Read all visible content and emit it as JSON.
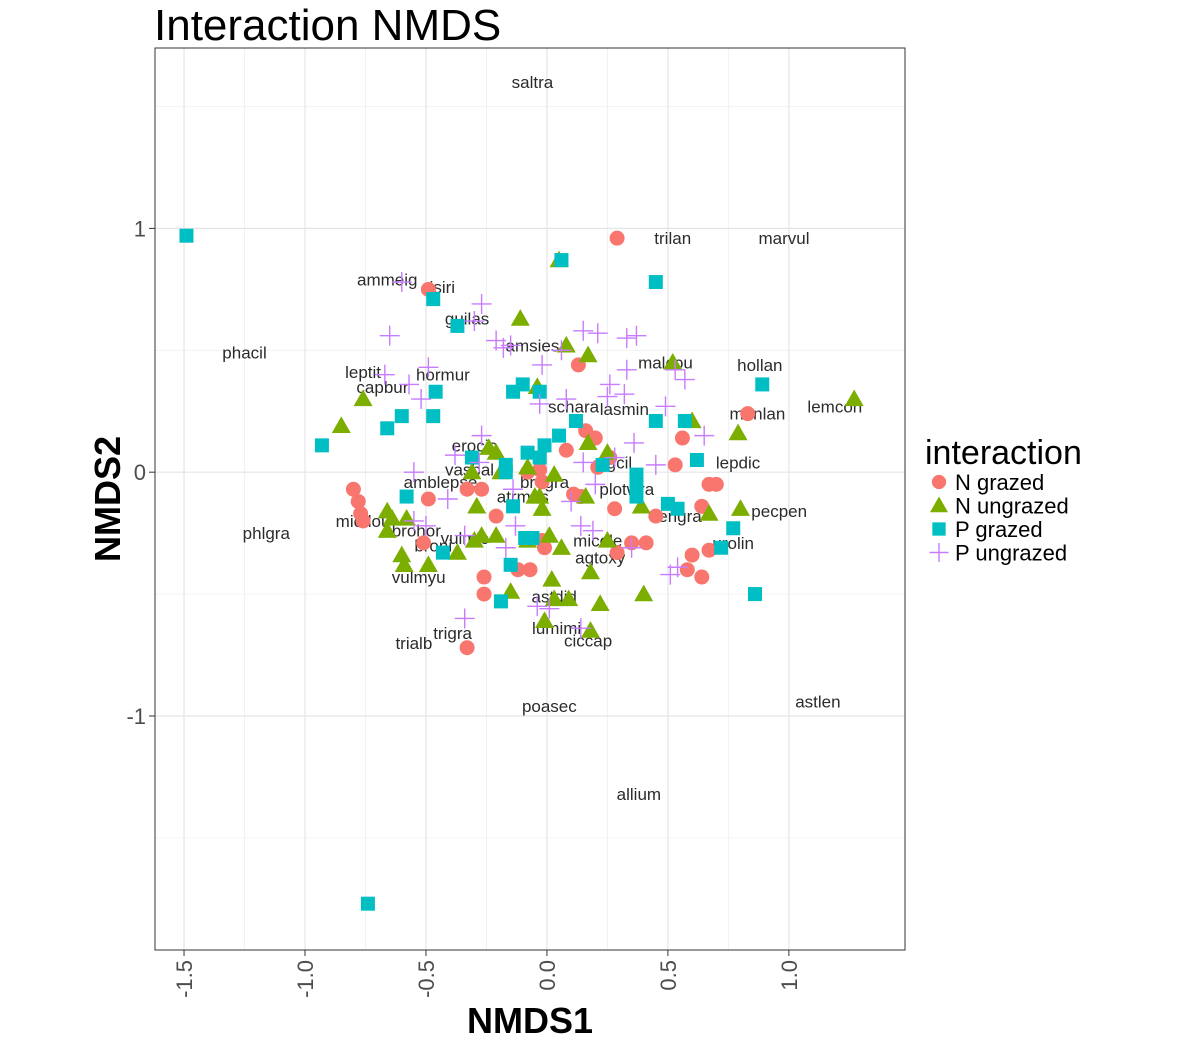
{
  "chart_data": {
    "type": "scatter",
    "title": "Interaction NMDS",
    "xlabel": "NMDS1",
    "ylabel": "NMDS2",
    "xlim": [
      -1.62,
      1.48
    ],
    "ylim": [
      -1.96,
      1.74
    ],
    "x_ticks": [
      -1.5,
      -1.0,
      -0.5,
      0.0,
      0.5,
      1.0
    ],
    "x_tick_labels": [
      "-1.5",
      "-1.0",
      "-0.5",
      "0.0",
      "0.5",
      "1.0"
    ],
    "y_ticks": [
      -1,
      0,
      1
    ],
    "y_tick_labels": [
      "-1",
      "0",
      "1"
    ],
    "grid": true,
    "legend": {
      "title": "interaction",
      "position": "right"
    },
    "series": [
      {
        "name": "N grazed",
        "shape": "circle",
        "color": "#F8766D",
        "points": [
          [
            0.29,
            0.96
          ],
          [
            -0.49,
            0.75
          ],
          [
            0.13,
            0.44
          ],
          [
            0.83,
            0.24
          ],
          [
            0.16,
            0.17
          ],
          [
            0.2,
            0.14
          ],
          [
            0.56,
            0.14
          ],
          [
            0.08,
            0.09
          ],
          [
            0.26,
            0.06
          ],
          [
            0.53,
            0.03
          ],
          [
            -0.03,
            0.01
          ],
          [
            0.21,
            0.02
          ],
          [
            -0.08,
            0.0
          ],
          [
            -0.27,
            -0.07
          ],
          [
            -0.33,
            -0.07
          ],
          [
            -0.02,
            -0.04
          ],
          [
            -0.8,
            -0.07
          ],
          [
            -0.78,
            -0.12
          ],
          [
            -0.77,
            -0.17
          ],
          [
            -0.76,
            -0.2
          ],
          [
            -0.49,
            -0.11
          ],
          [
            0.11,
            -0.09
          ],
          [
            0.14,
            -0.1
          ],
          [
            0.28,
            -0.15
          ],
          [
            0.45,
            -0.18
          ],
          [
            0.67,
            -0.05
          ],
          [
            0.7,
            -0.05
          ],
          [
            0.64,
            -0.14
          ],
          [
            -0.21,
            -0.18
          ],
          [
            -0.51,
            -0.29
          ],
          [
            -0.02,
            -0.28
          ],
          [
            -0.01,
            -0.31
          ],
          [
            0.35,
            -0.29
          ],
          [
            0.41,
            -0.29
          ],
          [
            0.29,
            -0.33
          ],
          [
            0.6,
            -0.34
          ],
          [
            0.67,
            -0.32
          ],
          [
            -0.12,
            -0.4
          ],
          [
            -0.07,
            -0.4
          ],
          [
            0.58,
            -0.4
          ],
          [
            0.64,
            -0.43
          ],
          [
            -0.26,
            -0.43
          ],
          [
            -0.26,
            -0.5
          ],
          [
            -0.33,
            -0.72
          ]
        ]
      },
      {
        "name": "N ungrazed",
        "shape": "triangle",
        "color": "#7CAE00",
        "points": [
          [
            0.05,
            0.87
          ],
          [
            -0.11,
            0.63
          ],
          [
            0.08,
            0.52
          ],
          [
            0.17,
            0.48
          ],
          [
            0.52,
            0.45
          ],
          [
            -0.04,
            0.35
          ],
          [
            -0.76,
            0.3
          ],
          [
            -0.85,
            0.19
          ],
          [
            0.6,
            0.21
          ],
          [
            0.79,
            0.16
          ],
          [
            1.27,
            0.3
          ],
          [
            0.17,
            0.12
          ],
          [
            -0.24,
            0.1
          ],
          [
            -0.21,
            0.08
          ],
          [
            0.25,
            0.08
          ],
          [
            -0.31,
            0.0
          ],
          [
            -0.19,
            0.0
          ],
          [
            -0.08,
            0.02
          ],
          [
            0.03,
            -0.01
          ],
          [
            -0.05,
            -0.1
          ],
          [
            -0.03,
            -0.1
          ],
          [
            0.16,
            -0.1
          ],
          [
            -0.02,
            -0.15
          ],
          [
            -0.29,
            -0.14
          ],
          [
            0.39,
            -0.14
          ],
          [
            -0.66,
            -0.16
          ],
          [
            -0.58,
            -0.19
          ],
          [
            -0.64,
            -0.19
          ],
          [
            -0.66,
            -0.24
          ],
          [
            0.67,
            -0.17
          ],
          [
            0.8,
            -0.15
          ],
          [
            -0.27,
            -0.26
          ],
          [
            -0.21,
            -0.26
          ],
          [
            0.01,
            -0.26
          ],
          [
            -0.08,
            -0.28
          ],
          [
            0.25,
            -0.28
          ],
          [
            -0.3,
            -0.28
          ],
          [
            0.06,
            -0.31
          ],
          [
            -0.6,
            -0.34
          ],
          [
            -0.59,
            -0.38
          ],
          [
            -0.49,
            -0.38
          ],
          [
            -0.37,
            -0.33
          ],
          [
            0.18,
            -0.41
          ],
          [
            0.02,
            -0.44
          ],
          [
            -0.15,
            -0.49
          ],
          [
            0.4,
            -0.5
          ],
          [
            0.03,
            -0.52
          ],
          [
            0.09,
            -0.52
          ],
          [
            0.22,
            -0.54
          ],
          [
            -0.01,
            -0.61
          ],
          [
            0.18,
            -0.65
          ]
        ]
      },
      {
        "name": "P grazed",
        "shape": "square",
        "color": "#00BFC4",
        "points": [
          [
            -1.49,
            0.97
          ],
          [
            0.06,
            0.87
          ],
          [
            0.45,
            0.78
          ],
          [
            -0.47,
            0.71
          ],
          [
            -0.37,
            0.6
          ],
          [
            -0.1,
            0.36
          ],
          [
            -0.14,
            0.33
          ],
          [
            -0.03,
            0.33
          ],
          [
            -0.46,
            0.33
          ],
          [
            -0.6,
            0.23
          ],
          [
            -0.47,
            0.23
          ],
          [
            -0.66,
            0.18
          ],
          [
            0.12,
            0.21
          ],
          [
            0.45,
            0.21
          ],
          [
            0.57,
            0.21
          ],
          [
            0.89,
            0.36
          ],
          [
            -0.93,
            0.11
          ],
          [
            -0.01,
            0.11
          ],
          [
            0.05,
            0.15
          ],
          [
            -0.08,
            0.08
          ],
          [
            -0.03,
            0.06
          ],
          [
            -0.31,
            0.06
          ],
          [
            0.23,
            0.03
          ],
          [
            0.62,
            0.05
          ],
          [
            -0.17,
            0.03
          ],
          [
            -0.17,
            0.0
          ],
          [
            0.37,
            -0.01
          ],
          [
            0.37,
            -0.06
          ],
          [
            0.37,
            -0.1
          ],
          [
            -0.58,
            -0.1
          ],
          [
            0.5,
            -0.13
          ],
          [
            0.54,
            -0.15
          ],
          [
            -0.14,
            -0.14
          ],
          [
            0.77,
            -0.23
          ],
          [
            -0.06,
            -0.27
          ],
          [
            -0.09,
            -0.27
          ],
          [
            -0.43,
            -0.33
          ],
          [
            0.72,
            -0.31
          ],
          [
            -0.15,
            -0.38
          ],
          [
            -0.19,
            -0.53
          ],
          [
            0.86,
            -0.5
          ],
          [
            -0.74,
            -1.77
          ]
        ]
      },
      {
        "name": "P ungrazed",
        "shape": "cross",
        "color": "#C77CFF",
        "points": [
          [
            -0.6,
            0.78
          ],
          [
            -0.27,
            0.69
          ],
          [
            -0.3,
            0.62
          ],
          [
            -0.65,
            0.56
          ],
          [
            -0.21,
            0.54
          ],
          [
            0.15,
            0.58
          ],
          [
            0.21,
            0.57
          ],
          [
            0.33,
            0.55
          ],
          [
            0.37,
            0.56
          ],
          [
            -0.18,
            0.51
          ],
          [
            -0.15,
            0.52
          ],
          [
            0.06,
            0.5
          ],
          [
            -0.49,
            0.43
          ],
          [
            -0.02,
            0.44
          ],
          [
            0.33,
            0.42
          ],
          [
            0.53,
            0.42
          ],
          [
            0.57,
            0.38
          ],
          [
            -0.67,
            0.4
          ],
          [
            -0.57,
            0.36
          ],
          [
            0.26,
            0.36
          ],
          [
            0.32,
            0.32
          ],
          [
            0.08,
            0.3
          ],
          [
            0.25,
            0.31
          ],
          [
            0.49,
            0.27
          ],
          [
            -0.52,
            0.3
          ],
          [
            -0.03,
            0.28
          ],
          [
            -0.27,
            0.15
          ],
          [
            0.65,
            0.15
          ],
          [
            0.36,
            0.12
          ],
          [
            -0.38,
            0.07
          ],
          [
            -0.28,
            0.04
          ],
          [
            0.15,
            0.04
          ],
          [
            0.28,
            0.06
          ],
          [
            0.45,
            0.03
          ],
          [
            -0.55,
            0.0
          ],
          [
            -0.14,
            -0.07
          ],
          [
            0.2,
            -0.05
          ],
          [
            -0.41,
            -0.11
          ],
          [
            0.1,
            -0.12
          ],
          [
            -0.13,
            -0.22
          ],
          [
            0.14,
            -0.22
          ],
          [
            0.19,
            -0.24
          ],
          [
            -0.34,
            -0.26
          ],
          [
            -0.17,
            -0.31
          ],
          [
            0.35,
            -0.31
          ],
          [
            0.51,
            -0.42
          ],
          [
            0.54,
            -0.39
          ],
          [
            -0.34,
            -0.6
          ],
          [
            -0.04,
            -0.55
          ],
          [
            0.01,
            -0.56
          ],
          [
            0.14,
            -0.64
          ],
          [
            -0.55,
            -0.2
          ],
          [
            -0.5,
            -0.22
          ]
        ]
      }
    ],
    "species_labels": [
      {
        "text": "saltra",
        "x": -0.06,
        "y": 1.6
      },
      {
        "text": "trilan",
        "x": 0.52,
        "y": 0.96
      },
      {
        "text": "marvul",
        "x": 0.98,
        "y": 0.96
      },
      {
        "text": "ammeig",
        "x": -0.66,
        "y": 0.79
      },
      {
        "text": "sisiri",
        "x": -0.45,
        "y": 0.76
      },
      {
        "text": "guilas",
        "x": -0.33,
        "y": 0.63
      },
      {
        "text": "phacil",
        "x": -1.25,
        "y": 0.49
      },
      {
        "text": "amsies",
        "x": -0.06,
        "y": 0.52
      },
      {
        "text": "leptit",
        "x": -0.76,
        "y": 0.41
      },
      {
        "text": "hormur",
        "x": -0.43,
        "y": 0.4
      },
      {
        "text": "capbur",
        "x": -0.68,
        "y": 0.35
      },
      {
        "text": "malcou",
        "x": 0.49,
        "y": 0.45
      },
      {
        "text": "hollan",
        "x": 0.88,
        "y": 0.44
      },
      {
        "text": "schara",
        "x": 0.11,
        "y": 0.27
      },
      {
        "text": "lasmin",
        "x": 0.32,
        "y": 0.26
      },
      {
        "text": "monlan",
        "x": 0.87,
        "y": 0.24
      },
      {
        "text": "lemcon",
        "x": 1.19,
        "y": 0.27
      },
      {
        "text": "erocic",
        "x": -0.3,
        "y": 0.11
      },
      {
        "text": "lepdic",
        "x": 0.79,
        "y": 0.04
      },
      {
        "text": "vasbal",
        "x": -0.32,
        "y": 0.01
      },
      {
        "text": "amblepse",
        "x": -0.44,
        "y": -0.04
      },
      {
        "text": "brogra",
        "x": -0.01,
        "y": -0.04
      },
      {
        "text": "agcil",
        "x": 0.28,
        "y": 0.04
      },
      {
        "text": "atrmus",
        "x": -0.1,
        "y": -0.1
      },
      {
        "text": "plotwra",
        "x": 0.33,
        "y": -0.07
      },
      {
        "text": "erigra",
        "x": 0.55,
        "y": -0.18
      },
      {
        "text": "pecpen",
        "x": 0.96,
        "y": -0.16
      },
      {
        "text": "phlgra",
        "x": -1.16,
        "y": -0.25
      },
      {
        "text": "micdou",
        "x": -0.76,
        "y": -0.2
      },
      {
        "text": "brohor",
        "x": -0.54,
        "y": -0.24
      },
      {
        "text": "vulmic",
        "x": -0.34,
        "y": -0.27
      },
      {
        "text": "micole",
        "x": 0.21,
        "y": -0.28
      },
      {
        "text": "urolin",
        "x": 0.77,
        "y": -0.29
      },
      {
        "text": "broni",
        "x": -0.47,
        "y": -0.3
      },
      {
        "text": "agtoxy",
        "x": 0.22,
        "y": -0.35
      },
      {
        "text": "vulmyu",
        "x": -0.53,
        "y": -0.43
      },
      {
        "text": "astdid",
        "x": 0.03,
        "y": -0.51
      },
      {
        "text": "lumimi",
        "x": 0.04,
        "y": -0.64
      },
      {
        "text": "ciccap",
        "x": 0.17,
        "y": -0.69
      },
      {
        "text": "trigra",
        "x": -0.39,
        "y": -0.66
      },
      {
        "text": "trialb",
        "x": -0.55,
        "y": -0.7
      },
      {
        "text": "poasec",
        "x": 0.01,
        "y": -0.96
      },
      {
        "text": "astlen",
        "x": 1.12,
        "y": -0.94
      },
      {
        "text": "allium",
        "x": 0.38,
        "y": -1.32
      }
    ]
  }
}
